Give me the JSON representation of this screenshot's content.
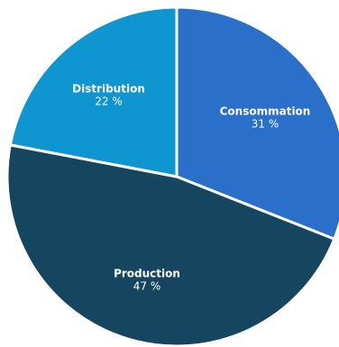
{
  "chart_data": {
    "type": "pie",
    "title": "",
    "slices": [
      {
        "label": "Consommation",
        "value": 31,
        "value_label": "31 %",
        "color": "#2a6fca"
      },
      {
        "label": "Production",
        "value": 47,
        "value_label": "47 %",
        "color": "#16465f"
      },
      {
        "label": "Distribution",
        "value": 22,
        "value_label": "22 %",
        "color": "#0f95cf"
      }
    ],
    "start_position": "top",
    "direction": "clockwise",
    "legend": "none",
    "slice_border_color": "#ffffff"
  }
}
